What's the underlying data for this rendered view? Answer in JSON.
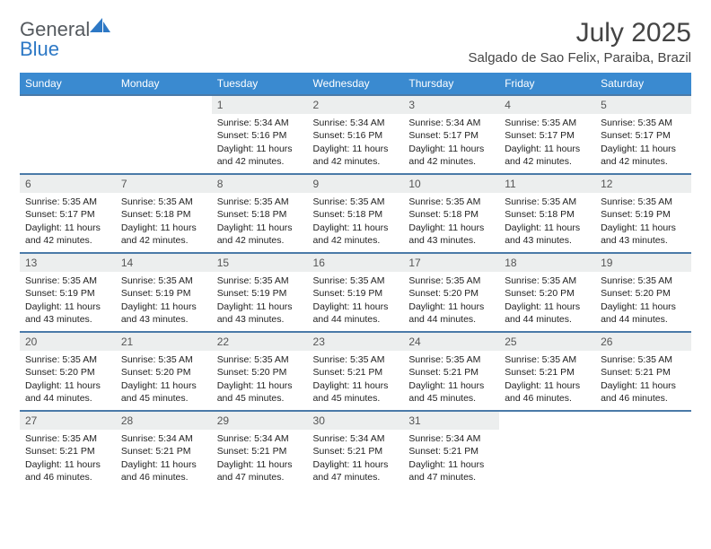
{
  "brand": {
    "part1": "General",
    "part2": "Blue"
  },
  "title": "July 2025",
  "location": "Salgado de Sao Felix, Paraiba, Brazil",
  "header_bg": "#3a8ad0",
  "rule_color": "#4a7aa8",
  "daynum_bg": "#eceeee",
  "weekdays": [
    "Sunday",
    "Monday",
    "Tuesday",
    "Wednesday",
    "Thursday",
    "Friday",
    "Saturday"
  ],
  "days": {
    "1": {
      "sunrise": "5:34 AM",
      "sunset": "5:16 PM",
      "daylight": "11 hours and 42 minutes."
    },
    "2": {
      "sunrise": "5:34 AM",
      "sunset": "5:16 PM",
      "daylight": "11 hours and 42 minutes."
    },
    "3": {
      "sunrise": "5:34 AM",
      "sunset": "5:17 PM",
      "daylight": "11 hours and 42 minutes."
    },
    "4": {
      "sunrise": "5:35 AM",
      "sunset": "5:17 PM",
      "daylight": "11 hours and 42 minutes."
    },
    "5": {
      "sunrise": "5:35 AM",
      "sunset": "5:17 PM",
      "daylight": "11 hours and 42 minutes."
    },
    "6": {
      "sunrise": "5:35 AM",
      "sunset": "5:17 PM",
      "daylight": "11 hours and 42 minutes."
    },
    "7": {
      "sunrise": "5:35 AM",
      "sunset": "5:18 PM",
      "daylight": "11 hours and 42 minutes."
    },
    "8": {
      "sunrise": "5:35 AM",
      "sunset": "5:18 PM",
      "daylight": "11 hours and 42 minutes."
    },
    "9": {
      "sunrise": "5:35 AM",
      "sunset": "5:18 PM",
      "daylight": "11 hours and 42 minutes."
    },
    "10": {
      "sunrise": "5:35 AM",
      "sunset": "5:18 PM",
      "daylight": "11 hours and 43 minutes."
    },
    "11": {
      "sunrise": "5:35 AM",
      "sunset": "5:18 PM",
      "daylight": "11 hours and 43 minutes."
    },
    "12": {
      "sunrise": "5:35 AM",
      "sunset": "5:19 PM",
      "daylight": "11 hours and 43 minutes."
    },
    "13": {
      "sunrise": "5:35 AM",
      "sunset": "5:19 PM",
      "daylight": "11 hours and 43 minutes."
    },
    "14": {
      "sunrise": "5:35 AM",
      "sunset": "5:19 PM",
      "daylight": "11 hours and 43 minutes."
    },
    "15": {
      "sunrise": "5:35 AM",
      "sunset": "5:19 PM",
      "daylight": "11 hours and 43 minutes."
    },
    "16": {
      "sunrise": "5:35 AM",
      "sunset": "5:19 PM",
      "daylight": "11 hours and 44 minutes."
    },
    "17": {
      "sunrise": "5:35 AM",
      "sunset": "5:20 PM",
      "daylight": "11 hours and 44 minutes."
    },
    "18": {
      "sunrise": "5:35 AM",
      "sunset": "5:20 PM",
      "daylight": "11 hours and 44 minutes."
    },
    "19": {
      "sunrise": "5:35 AM",
      "sunset": "5:20 PM",
      "daylight": "11 hours and 44 minutes."
    },
    "20": {
      "sunrise": "5:35 AM",
      "sunset": "5:20 PM",
      "daylight": "11 hours and 44 minutes."
    },
    "21": {
      "sunrise": "5:35 AM",
      "sunset": "5:20 PM",
      "daylight": "11 hours and 45 minutes."
    },
    "22": {
      "sunrise": "5:35 AM",
      "sunset": "5:20 PM",
      "daylight": "11 hours and 45 minutes."
    },
    "23": {
      "sunrise": "5:35 AM",
      "sunset": "5:21 PM",
      "daylight": "11 hours and 45 minutes."
    },
    "24": {
      "sunrise": "5:35 AM",
      "sunset": "5:21 PM",
      "daylight": "11 hours and 45 minutes."
    },
    "25": {
      "sunrise": "5:35 AM",
      "sunset": "5:21 PM",
      "daylight": "11 hours and 46 minutes."
    },
    "26": {
      "sunrise": "5:35 AM",
      "sunset": "5:21 PM",
      "daylight": "11 hours and 46 minutes."
    },
    "27": {
      "sunrise": "5:35 AM",
      "sunset": "5:21 PM",
      "daylight": "11 hours and 46 minutes."
    },
    "28": {
      "sunrise": "5:34 AM",
      "sunset": "5:21 PM",
      "daylight": "11 hours and 46 minutes."
    },
    "29": {
      "sunrise": "5:34 AM",
      "sunset": "5:21 PM",
      "daylight": "11 hours and 47 minutes."
    },
    "30": {
      "sunrise": "5:34 AM",
      "sunset": "5:21 PM",
      "daylight": "11 hours and 47 minutes."
    },
    "31": {
      "sunrise": "5:34 AM",
      "sunset": "5:21 PM",
      "daylight": "11 hours and 47 minutes."
    }
  },
  "labels": {
    "sunrise": "Sunrise: ",
    "sunset": "Sunset: ",
    "daylight": "Daylight: "
  },
  "grid": [
    [
      null,
      null,
      "1",
      "2",
      "3",
      "4",
      "5"
    ],
    [
      "6",
      "7",
      "8",
      "9",
      "10",
      "11",
      "12"
    ],
    [
      "13",
      "14",
      "15",
      "16",
      "17",
      "18",
      "19"
    ],
    [
      "20",
      "21",
      "22",
      "23",
      "24",
      "25",
      "26"
    ],
    [
      "27",
      "28",
      "29",
      "30",
      "31",
      null,
      null
    ]
  ]
}
